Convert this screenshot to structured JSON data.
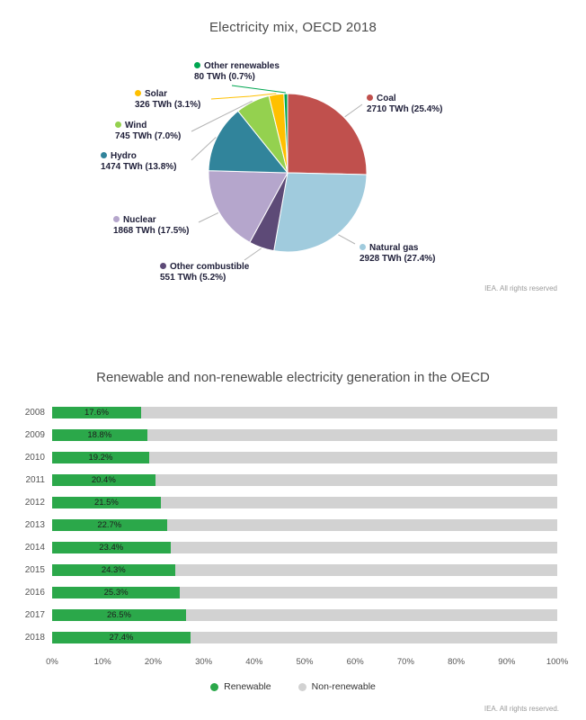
{
  "chart_data": [
    {
      "type": "pie",
      "title": "Electricity mix, OECD 2018",
      "footer": "IEA. All rights reserved",
      "unit": "TWh",
      "slices": [
        {
          "label": "Coal",
          "value": 2710,
          "pct": 25.4,
          "value_label": "2710 TWh (25.4%)",
          "color": "#c0504d"
        },
        {
          "label": "Natural gas",
          "value": 2928,
          "pct": 27.4,
          "value_label": "2928 TWh (27.4%)",
          "color": "#a0cbdd"
        },
        {
          "label": "Other combustible",
          "value": 551,
          "pct": 5.2,
          "value_label": "551 TWh (5.2%)",
          "color": "#5d4a77"
        },
        {
          "label": "Nuclear",
          "value": 1868,
          "pct": 17.5,
          "value_label": "1868 TWh (17.5%)",
          "color": "#b5a6cc"
        },
        {
          "label": "Hydro",
          "value": 1474,
          "pct": 13.8,
          "value_label": "1474 TWh (13.8%)",
          "color": "#31849b"
        },
        {
          "label": "Wind",
          "value": 745,
          "pct": 7.0,
          "value_label": "745 TWh (7.0%)",
          "color": "#94d14f"
        },
        {
          "label": "Solar",
          "value": 326,
          "pct": 3.1,
          "value_label": "326 TWh (3.1%)",
          "color": "#ffc000"
        },
        {
          "label": "Other renewables",
          "value": 80,
          "pct": 0.7,
          "value_label": "80 TWh (0.7%)",
          "color": "#00a651"
        }
      ]
    },
    {
      "type": "bar",
      "orientation": "horizontal-stacked",
      "title": "Renewable and non-renewable electricity generation in the OECD",
      "footer": "IEA. All rights reserved.",
      "categories": [
        "2008",
        "2009",
        "2010",
        "2011",
        "2012",
        "2013",
        "2014",
        "2015",
        "2016",
        "2017",
        "2018"
      ],
      "series": [
        {
          "name": "Renewable",
          "color": "#2ba84a",
          "values": [
            17.6,
            18.8,
            19.2,
            20.4,
            21.5,
            22.7,
            23.4,
            24.3,
            25.3,
            26.5,
            27.4
          ]
        },
        {
          "name": "Non-renewable",
          "color": "#d2d2d2",
          "values": [
            82.4,
            81.2,
            80.8,
            79.6,
            78.5,
            77.3,
            76.6,
            75.7,
            74.7,
            73.5,
            72.6
          ]
        }
      ],
      "bar_labels": [
        "17.6%",
        "18.8%",
        "19.2%",
        "20.4%",
        "21.5%",
        "22.7%",
        "23.4%",
        "24.3%",
        "25.3%",
        "26.5%",
        "27.4%"
      ],
      "x_ticks": [
        "0%",
        "10%",
        "20%",
        "30%",
        "40%",
        "50%",
        "60%",
        "70%",
        "80%",
        "90%",
        "100%"
      ],
      "xlim": [
        0,
        100
      ],
      "legend_position": "bottom",
      "grid": false
    }
  ]
}
